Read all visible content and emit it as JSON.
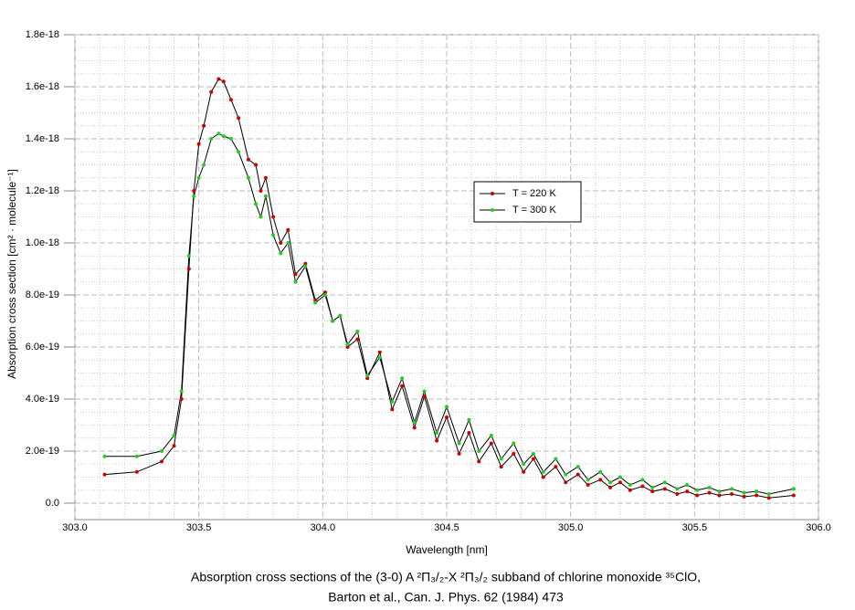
{
  "chart_data": {
    "type": "line",
    "title": "Absorption cross sections of the (3-0) A ²Π₃/₂-X ²Π₃/₂ subband of chlorine monoxide ³⁵ClO,",
    "subtitle": "Barton et al., Can. J. Phys. 62 (1984) 473",
    "x_label": "Wavelength [nm]",
    "y_label": "Absorption cross section [cm² · molecule⁻¹]",
    "x": [
      303.12,
      303.25,
      303.35,
      303.4,
      303.43,
      303.46,
      303.48,
      303.5,
      303.52,
      303.55,
      303.58,
      303.6,
      303.63,
      303.66,
      303.7,
      303.73,
      303.75,
      303.77,
      303.8,
      303.83,
      303.86,
      303.89,
      303.93,
      303.97,
      304.01,
      304.04,
      304.07,
      304.1,
      304.14,
      304.18,
      304.23,
      304.28,
      304.32,
      304.37,
      304.41,
      304.46,
      304.5,
      304.55,
      304.59,
      304.63,
      304.68,
      304.72,
      304.77,
      304.81,
      304.85,
      304.89,
      304.94,
      304.98,
      305.03,
      305.07,
      305.12,
      305.16,
      305.2,
      305.24,
      305.29,
      305.33,
      305.38,
      305.43,
      305.47,
      305.51,
      305.56,
      305.6,
      305.65,
      305.7,
      305.75,
      305.8,
      305.9
    ],
    "series": [
      {
        "name": "T = 220 K",
        "color": "#cc0000",
        "values": [
          1.1e-19,
          1.2e-19,
          1.6e-19,
          2.2e-19,
          4e-19,
          9e-19,
          1.2e-18,
          1.38e-18,
          1.45e-18,
          1.58e-18,
          1.63e-18,
          1.62e-18,
          1.55e-18,
          1.48e-18,
          1.32e-18,
          1.3e-18,
          1.2e-18,
          1.25e-18,
          1.1e-18,
          1e-18,
          1.05e-18,
          8.8e-19,
          9.2e-19,
          7.8e-19,
          8.1e-19,
          7e-19,
          7.2e-19,
          6e-19,
          6.3e-19,
          4.8e-19,
          5.8e-19,
          3.6e-19,
          4.5e-19,
          2.9e-19,
          4.1e-19,
          2.4e-19,
          3.3e-19,
          1.9e-19,
          2.7e-19,
          1.6e-19,
          2.3e-19,
          1.4e-19,
          1.9e-19,
          1.2e-19,
          1.7e-19,
          1e-19,
          1.4e-19,
          8e-20,
          1.1e-19,
          7e-20,
          9e-20,
          6e-20,
          8e-20,
          5e-20,
          6.5e-20,
          4.5e-20,
          5.5e-20,
          3.5e-20,
          4.5e-20,
          3e-20,
          4e-20,
          3e-20,
          3.5e-20,
          2.5e-20,
          3e-20,
          2e-20,
          3e-20
        ]
      },
      {
        "name": "T = 300 K",
        "color": "#22cc22",
        "values": [
          1.8e-19,
          1.8e-19,
          2e-19,
          2.6e-19,
          4.3e-19,
          9.5e-19,
          1.18e-18,
          1.25e-18,
          1.3e-18,
          1.4e-18,
          1.42e-18,
          1.41e-18,
          1.4e-18,
          1.35e-18,
          1.25e-18,
          1.15e-18,
          1.1e-18,
          1.18e-18,
          1.03e-18,
          9.6e-19,
          1e-18,
          8.5e-19,
          9.1e-19,
          7.7e-19,
          8e-19,
          7e-19,
          7.2e-19,
          6.1e-19,
          6.6e-19,
          4.9e-19,
          5.6e-19,
          3.9e-19,
          4.8e-19,
          3.1e-19,
          4.3e-19,
          2.7e-19,
          3.7e-19,
          2.3e-19,
          3.2e-19,
          2e-19,
          2.6e-19,
          1.7e-19,
          2.3e-19,
          1.5e-19,
          1.9e-19,
          1.2e-19,
          1.7e-19,
          1.1e-19,
          1.4e-19,
          9e-20,
          1.2e-19,
          8e-20,
          1e-19,
          7e-20,
          9e-20,
          6e-20,
          8e-20,
          5.5e-20,
          7e-20,
          5e-20,
          6e-20,
          4.5e-20,
          5.5e-20,
          4e-20,
          4.5e-20,
          3.5e-20,
          5.5e-20
        ]
      }
    ],
    "line_color": "#000000",
    "xlim": [
      303.0,
      306.0
    ],
    "xticks": [
      {
        "value": 303.0,
        "label": "303.0"
      },
      {
        "value": 303.5,
        "label": "303.5"
      },
      {
        "value": 304.0,
        "label": "304.0"
      },
      {
        "value": 304.5,
        "label": "304.5"
      },
      {
        "value": 305.0,
        "label": "305.0"
      },
      {
        "value": 305.5,
        "label": "305.5"
      },
      {
        "value": 306.0,
        "label": "306.0"
      }
    ],
    "ylim": [
      0,
      1.8e-18
    ],
    "yticks": [
      {
        "value": 0,
        "label": "0.0"
      },
      {
        "value": 2e-19,
        "label": "2.0e-19"
      },
      {
        "value": 4e-19,
        "label": "4.0e-19"
      },
      {
        "value": 6e-19,
        "label": "6.0e-19"
      },
      {
        "value": 8e-19,
        "label": "8.0e-19"
      },
      {
        "value": 1e-18,
        "label": "1.0e-18"
      },
      {
        "value": 1.2e-18,
        "label": "1.2e-18"
      },
      {
        "value": 1.4e-18,
        "label": "1.4e-18"
      },
      {
        "value": 1.6e-18,
        "label": "1.6e-18"
      },
      {
        "value": 1.8e-18,
        "label": "1.8e-18"
      }
    ],
    "grid": true,
    "legend_position": "right"
  }
}
